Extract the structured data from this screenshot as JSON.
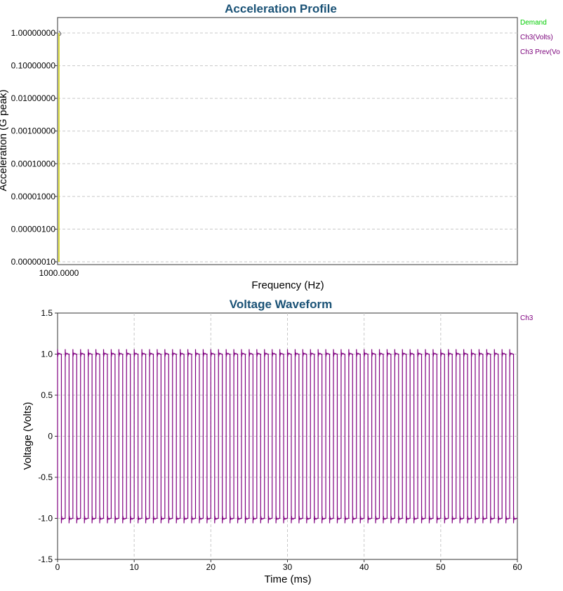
{
  "charts": [
    {
      "title": "Acceleration Profile",
      "xlabel": "Frequency (Hz)",
      "ylabel": "Acceleration (G peak)",
      "legend": [
        {
          "label": "Demand",
          "color": "#00cc00"
        },
        {
          "label": "Ch3(Volts)",
          "color": "#7a007a"
        },
        {
          "label": "Ch3 Prev(Vo",
          "color": "#7a007a"
        }
      ],
      "title_color": "#1a5276"
    },
    {
      "title": "Voltage Waveform",
      "xlabel": "Time (ms)",
      "ylabel": "Voltage (Volts)",
      "legend": [
        {
          "label": "Ch3",
          "color": "#800080"
        }
      ],
      "title_color": "#1a5276"
    }
  ],
  "chart_data": [
    {
      "type": "line",
      "title": "Acceleration Profile",
      "xlabel": "Frequency (Hz)",
      "ylabel": "Acceleration (G peak)",
      "x_ticks": [
        "1000.0000"
      ],
      "y_ticks": [
        "1.00000000",
        "0.10000000",
        "0.01000000",
        "0.00100000",
        "0.00010000",
        "0.00001000",
        "0.00000100",
        "0.00000010"
      ],
      "y_scale": "log",
      "ylim": [
        1e-07,
        1.5
      ],
      "grid": true,
      "legend_position": "right",
      "series": [
        {
          "name": "Demand",
          "color": "#00cc00",
          "x": [
            1000,
            1000
          ],
          "y": [
            1e-07,
            1.0
          ]
        },
        {
          "name": "Ch3(Volts)",
          "color": "#7a007a",
          "x": [],
          "y": []
        },
        {
          "name": "Ch3 Prev(Vo",
          "color": "#7a007a",
          "x": [],
          "y": []
        }
      ]
    },
    {
      "type": "line",
      "title": "Voltage Waveform",
      "xlabel": "Time (ms)",
      "ylabel": "Voltage (Volts)",
      "xlim": [
        0,
        60
      ],
      "ylim": [
        -1.5,
        1.5
      ],
      "x_ticks": [
        "0",
        "10",
        "20",
        "30",
        "40",
        "50",
        "60"
      ],
      "y_ticks": [
        "1.5",
        "1.0",
        "0.5",
        "0",
        "-0.5",
        "-1.0",
        "-1.5"
      ],
      "grid": true,
      "legend_position": "right",
      "series": [
        {
          "name": "Ch3",
          "color": "#800080",
          "waveform": "square",
          "period_ms": 1.0,
          "high": 1.0,
          "low": -1.0,
          "overshoot": 0.06,
          "x_start": 0,
          "x_end": 60
        }
      ]
    }
  ]
}
